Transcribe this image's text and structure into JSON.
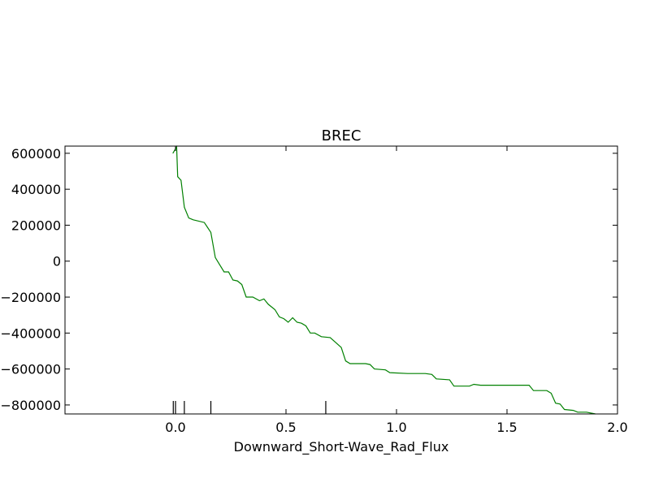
{
  "chart_data": {
    "type": "line",
    "title": "BREC",
    "xlabel": "Downward_Short-Wave_Rad_Flux",
    "ylabel": "",
    "xlim": [
      -0.5,
      2.0
    ],
    "ylim": [
      -850000,
      640000
    ],
    "grid": false,
    "x_ticks": [
      0.0,
      0.5,
      1.0,
      1.5,
      2.0
    ],
    "x_tick_labels": [
      "0.0",
      "0.5",
      "1.0",
      "1.5",
      "2.0"
    ],
    "y_ticks": [
      600000,
      400000,
      200000,
      0,
      -200000,
      -400000,
      -600000,
      -800000
    ],
    "y_tick_labels": [
      "600000",
      "400000",
      "200000",
      "0",
      "−200000",
      "−400000",
      "−600000",
      "−800000"
    ],
    "colors": {
      "line": "#008000",
      "rug": "#000000",
      "axes": "#000000"
    },
    "series": [
      {
        "x": [
          -0.012,
          0.005,
          0.01,
          0.025,
          0.04,
          0.06,
          0.08,
          0.13,
          0.16,
          0.18,
          0.2,
          0.22,
          0.24,
          0.26,
          0.28,
          0.3,
          0.32,
          0.35,
          0.38,
          0.4,
          0.42,
          0.45,
          0.47,
          0.49,
          0.51,
          0.53,
          0.55,
          0.57,
          0.59,
          0.61,
          0.63,
          0.66,
          0.7,
          0.75,
          0.77,
          0.79,
          0.86,
          0.88,
          0.9,
          0.95,
          0.97,
          1.05,
          1.1,
          1.13,
          1.16,
          1.18,
          1.24,
          1.26,
          1.33,
          1.35,
          1.38,
          1.45,
          1.5,
          1.6,
          1.62,
          1.68,
          1.7,
          1.72,
          1.74,
          1.76,
          1.8,
          1.82,
          1.86,
          1.9
        ],
        "values": [
          600000,
          635000,
          470000,
          450000,
          300000,
          240000,
          230000,
          215000,
          160000,
          20000,
          -20000,
          -60000,
          -60000,
          -105000,
          -110000,
          -130000,
          -200000,
          -200000,
          -220000,
          -210000,
          -240000,
          -270000,
          -310000,
          -320000,
          -340000,
          -315000,
          -340000,
          -345000,
          -360000,
          -400000,
          -400000,
          -420000,
          -425000,
          -480000,
          -555000,
          -570000,
          -570000,
          -575000,
          -600000,
          -605000,
          -620000,
          -625000,
          -625000,
          -625000,
          -630000,
          -655000,
          -660000,
          -695000,
          -695000,
          -685000,
          -690000,
          -690000,
          -690000,
          -690000,
          -720000,
          -720000,
          -735000,
          -790000,
          -795000,
          -825000,
          -830000,
          -840000,
          -840000,
          -850000
        ]
      }
    ],
    "rug_x": [
      -0.01,
      0.0,
      0.04,
      0.16,
      0.68
    ]
  }
}
